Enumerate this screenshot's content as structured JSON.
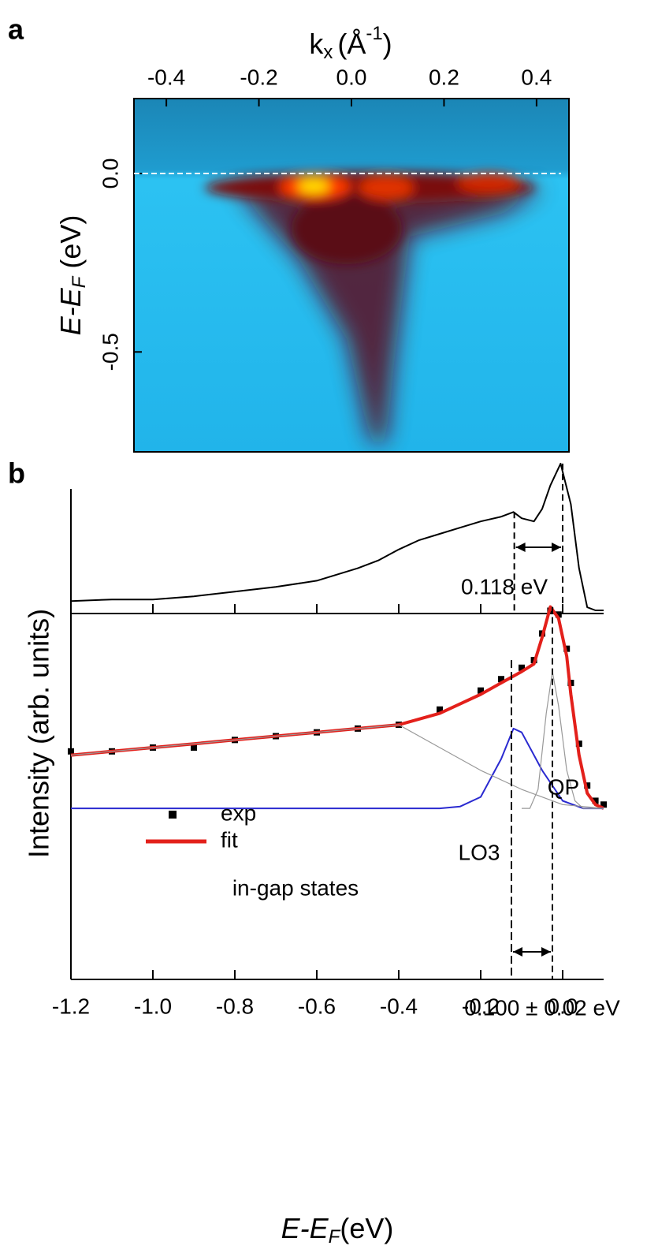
{
  "chart_data": [
    {
      "type": "image",
      "label": "a",
      "x_label": {
        "main": "k",
        "sub": "x",
        "unit": "(Å",
        "sup": "-1",
        "close": ")"
      },
      "y_label": {
        "main": "E-E",
        "sub": "F",
        "unit": " (eV)"
      },
      "xlim": [
        -0.47,
        0.47
      ],
      "xticks": [
        -0.4,
        -0.2,
        {
          "value": 0,
          "label": "0.0"
        },
        0.2,
        0.4
      ],
      "ylim": [
        -0.78,
        0.21
      ],
      "yticks": [
        {
          "value": 0,
          "label": "0.0"
        },
        -0.5
      ],
      "fermi_level": 0
    },
    {
      "type": "line",
      "label": "b",
      "y_label": "Intensity (arb. units)",
      "xlim": [
        -1.2,
        0.1
      ],
      "ylim": [
        0,
        1
      ],
      "x": [
        -1.2,
        -1.1,
        -1.0,
        -0.9,
        -0.8,
        -0.7,
        -0.6,
        -0.5,
        -0.45,
        -0.4,
        -0.35,
        -0.3,
        -0.25,
        -0.2,
        -0.15,
        -0.12,
        -0.1,
        -0.07,
        -0.05,
        -0.03,
        -0.005,
        0.02,
        0.04,
        0.06,
        0.08,
        0.1
      ],
      "series": [
        {
          "color": "#000000",
          "values": [
            0.08,
            0.09,
            0.09,
            0.11,
            0.14,
            0.17,
            0.21,
            0.29,
            0.34,
            0.41,
            0.47,
            0.51,
            0.55,
            0.59,
            0.62,
            0.65,
            0.61,
            0.59,
            0.67,
            0.82,
            0.96,
            0.7,
            0.29,
            0.04,
            0.02,
            0.02
          ]
        }
      ],
      "markers": [
        -0.118,
        0.0
      ],
      "annotation": "0.118 eV"
    },
    {
      "type": "line",
      "x_label": {
        "main": "E-E",
        "sub": "F",
        "unit": "(eV)"
      },
      "xlim": [
        -1.2,
        0.1
      ],
      "ylim": [
        0,
        1
      ],
      "xticks": [
        -1.2,
        {
          "value": -1.0,
          "label": "-1.0"
        },
        -0.8,
        -0.6,
        -0.4,
        -0.2,
        {
          "value": 0,
          "label": "0.0"
        }
      ],
      "x": [
        -1.2,
        -1.1,
        -1.0,
        -0.9,
        -0.8,
        -0.7,
        -0.6,
        -0.5,
        -0.4,
        -0.3,
        -0.2,
        -0.15,
        -0.1,
        -0.07,
        -0.05,
        -0.03,
        -0.01,
        0.01,
        0.02,
        0.04,
        0.06,
        0.08,
        0.1
      ],
      "series": [
        {
          "name": "exp",
          "color": "#000000",
          "marker": "square",
          "values": [
            0.6,
            0.6,
            0.61,
            0.61,
            0.63,
            0.64,
            0.65,
            0.66,
            0.67,
            0.71,
            0.76,
            0.79,
            0.82,
            0.84,
            0.91,
            0.97,
            0.96,
            0.87,
            0.78,
            0.62,
            0.51,
            0.47,
            0.46
          ]
        },
        {
          "name": "fit",
          "color": "#e3201b",
          "values": [
            0.59,
            0.6,
            0.61,
            0.62,
            0.63,
            0.64,
            0.65,
            0.66,
            0.67,
            0.7,
            0.75,
            0.78,
            0.81,
            0.83,
            0.9,
            0.98,
            0.95,
            0.85,
            0.75,
            0.59,
            0.49,
            0.46,
            0.45
          ]
        },
        {
          "color": "#2a2ad0",
          "x": [
            -1.2,
            -0.3,
            -0.25,
            -0.2,
            -0.15,
            -0.12,
            -0.1,
            -0.05,
            0.0,
            0.05,
            0.1
          ],
          "values": [
            0.45,
            0.45,
            0.455,
            0.48,
            0.58,
            0.66,
            0.65,
            0.55,
            0.47,
            0.45,
            0.45
          ]
        },
        {
          "color": "#999999",
          "x": [
            -0.1,
            -0.08,
            -0.06,
            -0.04,
            -0.025,
            -0.01,
            0.01,
            0.03,
            0.05,
            0.1
          ],
          "values": [
            0.45,
            0.45,
            0.5,
            0.7,
            0.81,
            0.72,
            0.55,
            0.47,
            0.45,
            0.45
          ]
        },
        {
          "color": "#999999",
          "x": [
            -1.2,
            -1.0,
            -0.8,
            -0.6,
            -0.4,
            -0.3,
            -0.2,
            -0.1,
            0.0,
            0.1
          ],
          "values": [
            0.59,
            0.61,
            0.63,
            0.65,
            0.67,
            0.61,
            0.55,
            0.5,
            0.46,
            0.45
          ]
        }
      ],
      "markers": [
        -0.125,
        -0.025
      ],
      "annotations": {
        "peak": "QP",
        "phonon": "LO3",
        "background": "in-gap states",
        "spacing": "0.100 ± 0.02 eV"
      }
    }
  ]
}
